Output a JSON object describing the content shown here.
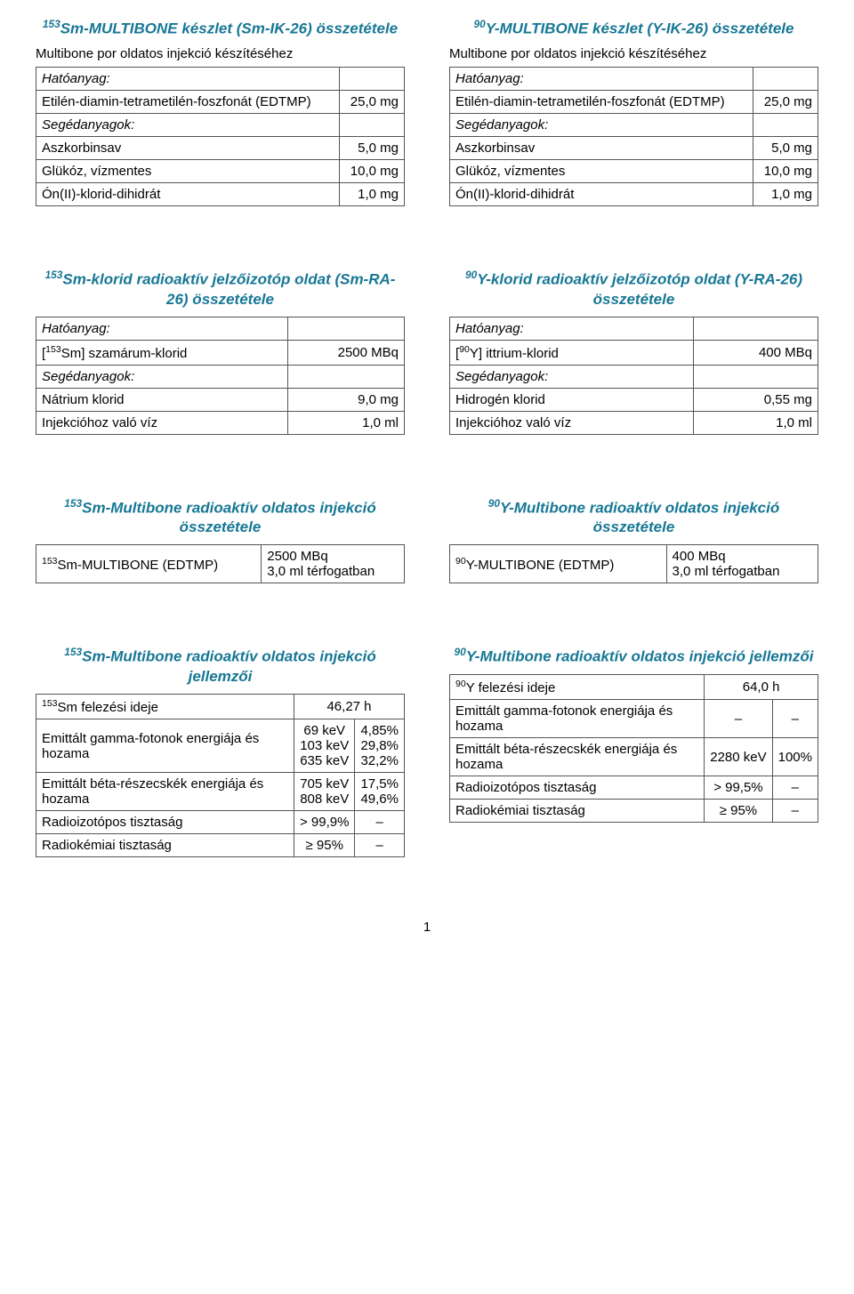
{
  "page_number": "1",
  "colors": {
    "heading": "#177795",
    "text": "#000000",
    "border": "#555555"
  },
  "sections": {
    "sm_kit": {
      "title_html": "<sup>153</sup>Sm-MULTIBONE készlet (Sm-IK-26) összetétele",
      "sub": "Multibone por oldatos injekció készítéséhez",
      "rows": [
        [
          "Hatóanyag:",
          ""
        ],
        [
          "Etilén-diamin-tetrametilén-foszfonát (EDTMP)",
          "25,0 mg"
        ],
        [
          "Segédanyagok:",
          ""
        ],
        [
          "Aszkorbinsav",
          "5,0 mg"
        ],
        [
          "Glükóz, vízmentes",
          "10,0 mg"
        ],
        [
          "Ón(II)-klorid-dihidrát",
          "1,0 mg"
        ]
      ]
    },
    "y_kit": {
      "title_html": "<sup>90</sup>Y-MULTIBONE készlet (Y-IK-26) összetétele",
      "sub": "Multibone por oldatos injekció készítéséhez",
      "rows": [
        [
          "Hatóanyag:",
          ""
        ],
        [
          "Etilén-diamin-tetrametilén-foszfonát (EDTMP)",
          "25,0 mg"
        ],
        [
          "Segédanyagok:",
          ""
        ],
        [
          "Aszkorbinsav",
          "5,0 mg"
        ],
        [
          "Glükóz, vízmentes",
          "10,0 mg"
        ],
        [
          "Ón(II)-klorid-dihidrát",
          "1,0 mg"
        ]
      ]
    },
    "sm_chloride": {
      "title_html": "<sup>153</sup>Sm-klorid radioaktív jelzőizotóp oldat (Sm-RA-26) összetétele",
      "rows": [
        [
          "Hatóanyag:",
          ""
        ],
        [
          "[<sup>153</sup>Sm] szamárum-klorid",
          "2500 MBq"
        ],
        [
          "Segédanyagok:",
          ""
        ],
        [
          "Nátrium klorid",
          "9,0 mg"
        ],
        [
          "Injekcióhoz való víz",
          "1,0 ml"
        ]
      ]
    },
    "y_chloride": {
      "title_html": "<sup>90</sup>Y-klorid radioaktív jelzőizotóp oldat (Y-RA-26) összetétele",
      "rows": [
        [
          "Hatóanyag:",
          ""
        ],
        [
          "[<sup>90</sup>Y] ittrium-klorid",
          "400 MBq"
        ],
        [
          "Segédanyagok:",
          ""
        ],
        [
          "Hidrogén klorid",
          "0,55 mg"
        ],
        [
          "Injekcióhoz való víz",
          "1,0 ml"
        ]
      ]
    },
    "sm_inj": {
      "title_html": "<sup>153</sup>Sm-Multibone radioaktív oldatos injekció összetétele",
      "rows": [
        [
          "<sup>153</sup>Sm-MULTIBONE (EDTMP)",
          "2500 MBq<br>3,0 ml térfogatban"
        ]
      ]
    },
    "y_inj": {
      "title_html": "<sup>90</sup>Y-Multibone radioaktív oldatos injekció összetétele",
      "rows": [
        [
          "<sup>90</sup>Y-MULTIBONE (EDTMP)",
          "400 MBq<br>3,0 ml térfogatban"
        ]
      ]
    },
    "sm_props": {
      "title_html": "<sup>153</sup>Sm-Multibone radioaktív oldatos injekció jellemzői",
      "rows3": [
        [
          "<sup>153</sup>Sm felezési ideje",
          "46,27 h",
          ""
        ],
        [
          "Emittált gamma-fotonok energiája és hozama",
          "69 keV<br>103 keV<br>635 keV",
          "4,85%<br>29,8%<br>32,2%"
        ],
        [
          "Emittált béta-részecskék energiája és hozama",
          "705 keV<br>808 keV",
          "17,5%<br>49,6%"
        ],
        [
          "Radioizotópos tisztaság",
          "> 99,9%",
          "–"
        ],
        [
          "Radiokémiai tisztaság",
          "≥ 95%",
          "–"
        ]
      ],
      "first_span": true
    },
    "y_props": {
      "title_html": "<sup>90</sup>Y-Multibone radioaktív oldatos injekció jellemzői",
      "rows3": [
        [
          "<sup>90</sup>Y felezési ideje",
          "64,0 h",
          ""
        ],
        [
          "Emittált gamma-fotonok energiája és hozama",
          "–",
          "–"
        ],
        [
          "Emittált béta-részecskék energiája és hozama",
          "2280 keV",
          "100%"
        ],
        [
          "Radioizotópos tisztaság",
          "> 99,5%",
          "–"
        ],
        [
          "Radiokémiai tisztaság",
          "≥ 95%",
          "–"
        ]
      ],
      "first_span": true
    }
  }
}
